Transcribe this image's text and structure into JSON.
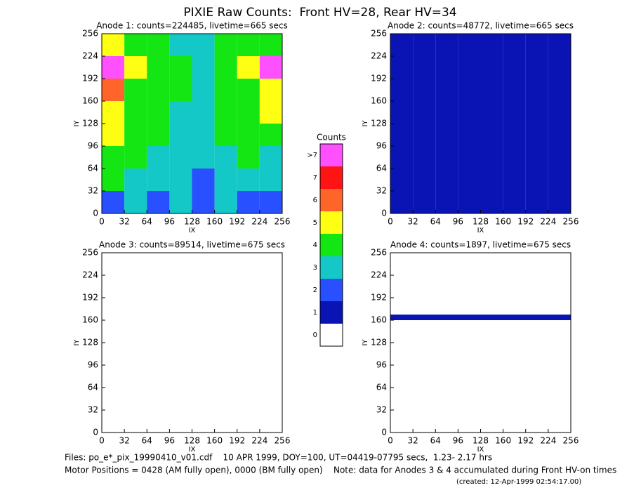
{
  "title": "PIXIE Raw Counts:  Front HV=28, Rear HV=34",
  "chart_data": [
    {
      "type": "heatmap",
      "title": "Anode 1: counts=224485, livetime=665 secs",
      "x_label": "IX",
      "y_label": "IY",
      "xlim": [
        0,
        256
      ],
      "ylim": [
        0,
        256
      ],
      "xticks": [
        0,
        32,
        64,
        96,
        128,
        160,
        192,
        224,
        256
      ],
      "yticks": [
        0,
        32,
        64,
        96,
        128,
        160,
        192,
        224,
        256
      ],
      "z": [
        [
          2,
          3,
          2,
          3,
          2,
          3,
          2,
          2
        ],
        [
          4,
          3,
          3,
          3,
          2,
          3,
          3,
          3
        ],
        [
          4,
          4,
          3,
          3,
          3,
          3,
          4,
          3
        ],
        [
          5,
          4,
          4,
          3,
          3,
          4,
          4,
          4
        ],
        [
          5,
          4,
          4,
          3,
          3,
          4,
          4,
          5
        ],
        [
          6,
          4,
          4,
          4,
          3,
          4,
          4,
          5
        ],
        [
          8,
          5,
          4,
          4,
          3,
          4,
          5,
          8
        ],
        [
          5,
          4,
          4,
          3,
          3,
          4,
          4,
          4
        ]
      ]
    },
    {
      "type": "heatmap",
      "title": "Anode 2: counts=48772, livetime=665 secs",
      "x_label": "IX",
      "y_label": "IY",
      "xlim": [
        0,
        256
      ],
      "ylim": [
        0,
        256
      ],
      "xticks": [
        0,
        32,
        64,
        96,
        128,
        160,
        192,
        224,
        256
      ],
      "yticks": [
        0,
        32,
        64,
        96,
        128,
        160,
        192,
        224,
        256
      ],
      "z": [
        [
          1,
          1,
          1,
          1,
          1,
          1,
          1,
          1
        ],
        [
          1,
          1,
          1,
          1,
          1,
          1,
          1,
          1
        ],
        [
          1,
          1,
          1,
          1,
          1,
          1,
          1,
          1
        ],
        [
          1,
          1,
          1,
          1,
          1,
          1,
          1,
          1
        ],
        [
          1,
          1,
          1,
          1,
          1,
          1,
          1,
          1
        ],
        [
          1,
          1,
          1,
          1,
          1,
          1,
          1,
          1
        ],
        [
          1,
          1,
          1,
          1,
          1,
          1,
          1,
          1
        ],
        [
          1,
          1,
          1,
          1,
          1,
          1,
          1,
          1
        ]
      ]
    },
    {
      "type": "heatmap",
      "title": "Anode 3: counts=89514, livetime=675 secs",
      "x_label": "IX",
      "y_label": "IY",
      "xlim": [
        0,
        256
      ],
      "ylim": [
        0,
        256
      ],
      "xticks": [
        0,
        32,
        64,
        96,
        128,
        160,
        192,
        224,
        256
      ],
      "yticks": [
        0,
        32,
        64,
        96,
        128,
        160,
        192,
        224,
        256
      ],
      "z": [
        [
          0
        ]
      ]
    },
    {
      "type": "heatmap",
      "title": "Anode 4: counts=1897, livetime=675 secs",
      "x_label": "IX",
      "y_label": "IY",
      "xlim": [
        0,
        256
      ],
      "ylim": [
        0,
        256
      ],
      "xticks": [
        0,
        32,
        64,
        96,
        128,
        160,
        192,
        224,
        256
      ],
      "yticks": [
        0,
        32,
        64,
        96,
        128,
        160,
        192,
        224,
        256
      ],
      "z": [
        [
          0
        ],
        [
          0
        ],
        [
          0
        ],
        [
          0
        ],
        [
          0
        ],
        [
          0
        ],
        [
          0
        ],
        [
          0
        ],
        [
          0
        ],
        [
          0
        ],
        [
          0
        ],
        [
          0
        ],
        [
          0
        ],
        [
          0
        ],
        [
          0
        ],
        [
          0
        ],
        [
          0
        ],
        [
          0
        ],
        [
          0
        ],
        [
          0
        ],
        [
          1
        ],
        [
          0
        ],
        [
          0
        ],
        [
          0
        ],
        [
          0
        ],
        [
          0
        ],
        [
          0
        ],
        [
          0
        ],
        [
          0
        ],
        [
          0
        ],
        [
          0
        ],
        [
          0
        ]
      ]
    },
    {
      "type": "colorbar",
      "title": "Counts",
      "categories": [
        "0",
        "1",
        "2",
        "3",
        "4",
        "5",
        "6",
        "7",
        ">7"
      ],
      "colors": [
        "#ffffff",
        "#0a14b4",
        "#2850ff",
        "#14c8c8",
        "#14e614",
        "#ffff14",
        "#ff6428",
        "#ff1414",
        "#ff50ff"
      ]
    }
  ],
  "footer": {
    "files": "Files: po_e*_pix_19990410_v01.cdf    10 APR 1999, DOY=100, UT=04419-07795 secs,  1.23- 2.17 hrs",
    "motor": "Motor Positions = 0428 (AM fully open), 0000 (BM fully open)    Note: data for Anodes 3 & 4 accumulated during Front HV-on times",
    "created": "(created: 12-Apr-1999 02:54:17.00)"
  }
}
